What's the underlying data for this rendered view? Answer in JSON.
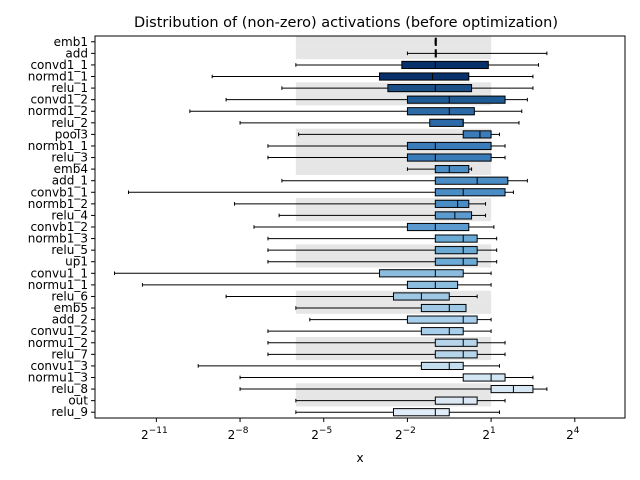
{
  "chart_data": {
    "type": "boxplot",
    "title": "Distribution of (non-zero) activations (before optimization)",
    "xlabel": "x",
    "x_scale": "log2",
    "x_range": [
      -13.2,
      5.8
    ],
    "x_ticks": [
      {
        "exp": -11,
        "base": "2",
        "sup": "−11"
      },
      {
        "exp": -8,
        "base": "2",
        "sup": "−8"
      },
      {
        "exp": -5,
        "base": "2",
        "sup": "−5"
      },
      {
        "exp": -2,
        "base": "2",
        "sup": "−2"
      },
      {
        "exp": 1,
        "base": "2",
        "sup": "1"
      },
      {
        "exp": 4,
        "base": "2",
        "sup": "4"
      }
    ],
    "shaded_band_log2": [
      -6,
      1
    ],
    "categories": [
      "emb1",
      "add",
      "convd1_1",
      "normd1_1",
      "relu_1",
      "convd1_2",
      "normd1_2",
      "relu_2",
      "pool3",
      "normb1_1",
      "relu_3",
      "emb4",
      "add_1",
      "convb1_1",
      "normb1_2",
      "relu_4",
      "convb1_2",
      "normb1_3",
      "relu_5",
      "up1",
      "convu1_1",
      "normu1_1",
      "relu_6",
      "emb5",
      "add_2",
      "convu1_2",
      "normu1_2",
      "relu_7",
      "convu1_3",
      "normu1_3",
      "relu_8",
      "out",
      "relu_9"
    ],
    "shaded_rows": [
      0,
      1,
      4,
      5,
      8,
      9,
      10,
      11,
      14,
      15,
      18,
      19,
      22,
      23,
      26,
      27,
      30,
      31
    ],
    "colors": [
      "#08306b",
      "#08306b",
      "#08306b",
      "#08306b",
      "#1b4f86",
      "#1e5a94",
      "#2b6aa6",
      "#2b6aa6",
      "#3a7cb9",
      "#3a7cb9",
      "#3a7cb9",
      "#4a8cc4",
      "#4a8cc4",
      "#4a8cc4",
      "#4a8cc4",
      "#5b9bd0",
      "#5b9bd0",
      "#6aaad5",
      "#6aaad5",
      "#6aaad5",
      "#8dbdde",
      "#8dbdde",
      "#9ec8e3",
      "#9ec8e3",
      "#a7ceeb",
      "#a7ceeb",
      "#b6d5eb",
      "#b6d5eb",
      "#c4deef",
      "#d2e6f4",
      "#d7e8f4",
      "#dce9f5",
      "#e0ecf8"
    ],
    "series": [
      {
        "name": "emb1",
        "whislo": -1.0,
        "q1": -1.0,
        "med": -1.0,
        "q3": -1.0,
        "whishi": -1.0
      },
      {
        "name": "add",
        "whislo": -2.0,
        "q1": -1.0,
        "med": -1.0,
        "q3": -1.0,
        "whishi": 3.0
      },
      {
        "name": "convd1_1",
        "whislo": -6.0,
        "q1": -2.2,
        "med": -1.0,
        "q3": 0.9,
        "whishi": 2.7
      },
      {
        "name": "normd1_1",
        "whislo": -9.0,
        "q1": -3.0,
        "med": -1.1,
        "q3": 0.2,
        "whishi": 2.5
      },
      {
        "name": "relu_1",
        "whislo": -6.5,
        "q1": -2.7,
        "med": -1.0,
        "q3": 0.3,
        "whishi": 2.5
      },
      {
        "name": "convd1_2",
        "whislo": -8.5,
        "q1": -2.0,
        "med": -0.5,
        "q3": 1.5,
        "whishi": 2.3
      },
      {
        "name": "normd1_2",
        "whislo": -9.8,
        "q1": -2.0,
        "med": -0.5,
        "q3": 0.4,
        "whishi": 2.1
      },
      {
        "name": "relu_2",
        "whislo": -8.0,
        "q1": -1.2,
        "med": 0.0,
        "q3": 0.0,
        "whishi": 2.0
      },
      {
        "name": "pool3",
        "whislo": -5.9,
        "q1": 0.0,
        "med": 0.6,
        "q3": 1.0,
        "whishi": 1.3
      },
      {
        "name": "normb1_1",
        "whislo": -7.0,
        "q1": -2.0,
        "med": -1.0,
        "q3": 1.0,
        "whishi": 1.5
      },
      {
        "name": "relu_3",
        "whislo": -7.0,
        "q1": -2.0,
        "med": -1.0,
        "q3": 1.0,
        "whishi": 1.5
      },
      {
        "name": "emb4",
        "whislo": -2.0,
        "q1": -1.0,
        "med": -0.5,
        "q3": 0.2,
        "whishi": 0.3
      },
      {
        "name": "add_1",
        "whislo": -6.5,
        "q1": -1.0,
        "med": 0.5,
        "q3": 1.6,
        "whishi": 2.3
      },
      {
        "name": "convb1_1",
        "whislo": -12.0,
        "q1": -1.0,
        "med": 0.0,
        "q3": 1.5,
        "whishi": 1.8
      },
      {
        "name": "normb1_2",
        "whislo": -8.2,
        "q1": -1.0,
        "med": -0.2,
        "q3": 0.2,
        "whishi": 0.8
      },
      {
        "name": "relu_4",
        "whislo": -6.6,
        "q1": -1.0,
        "med": -0.3,
        "q3": 0.3,
        "whishi": 0.8
      },
      {
        "name": "convb1_2",
        "whislo": -7.5,
        "q1": -2.0,
        "med": -1.0,
        "q3": 0.2,
        "whishi": 1.1
      },
      {
        "name": "normb1_3",
        "whislo": -7.0,
        "q1": -1.0,
        "med": 0.0,
        "q3": 0.5,
        "whishi": 1.2
      },
      {
        "name": "relu_5",
        "whislo": -7.0,
        "q1": -1.0,
        "med": 0.0,
        "q3": 0.5,
        "whishi": 1.2
      },
      {
        "name": "up1",
        "whislo": -7.0,
        "q1": -1.0,
        "med": 0.0,
        "q3": 0.5,
        "whishi": 1.2
      },
      {
        "name": "convu1_1",
        "whislo": -12.5,
        "q1": -3.0,
        "med": -1.0,
        "q3": 0.0,
        "whishi": 1.0
      },
      {
        "name": "normu1_1",
        "whislo": -11.5,
        "q1": -2.0,
        "med": -1.0,
        "q3": -0.2,
        "whishi": 1.0
      },
      {
        "name": "relu_6",
        "whislo": -8.5,
        "q1": -2.5,
        "med": -1.5,
        "q3": -0.5,
        "whishi": 0.5
      },
      {
        "name": "emb5",
        "whislo": -6.0,
        "q1": -1.5,
        "med": -0.5,
        "q3": 0.1,
        "whishi": 0.1
      },
      {
        "name": "add_2",
        "whislo": -5.5,
        "q1": -2.0,
        "med": 0.0,
        "q3": 0.5,
        "whishi": 1.0
      },
      {
        "name": "convu1_2",
        "whislo": -7.0,
        "q1": -1.5,
        "med": -0.5,
        "q3": 0.0,
        "whishi": 1.0
      },
      {
        "name": "normu1_2",
        "whislo": -7.0,
        "q1": -1.0,
        "med": 0.0,
        "q3": 0.5,
        "whishi": 1.5
      },
      {
        "name": "relu_7",
        "whislo": -7.0,
        "q1": -1.0,
        "med": 0.0,
        "q3": 0.5,
        "whishi": 1.5
      },
      {
        "name": "convu1_3",
        "whislo": -9.5,
        "q1": -1.5,
        "med": -0.5,
        "q3": 0.0,
        "whishi": 1.3
      },
      {
        "name": "normu1_3",
        "whislo": -8.0,
        "q1": 0.0,
        "med": 1.0,
        "q3": 1.5,
        "whishi": 2.5
      },
      {
        "name": "relu_8",
        "whislo": -8.0,
        "q1": 1.0,
        "med": 1.8,
        "q3": 2.5,
        "whishi": 3.0
      },
      {
        "name": "out",
        "whislo": -6.0,
        "q1": -1.0,
        "med": 0.0,
        "q3": 0.5,
        "whishi": 1.5
      },
      {
        "name": "relu_9",
        "whislo": -6.0,
        "q1": -2.5,
        "med": -1.0,
        "q3": -0.5,
        "whishi": 1.3
      }
    ]
  }
}
